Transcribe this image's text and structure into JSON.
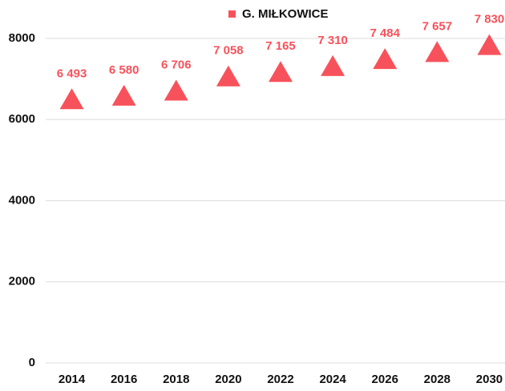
{
  "chart_data": {
    "type": "scatter",
    "x": [
      2014,
      2016,
      2018,
      2020,
      2022,
      2024,
      2026,
      2028,
      2030
    ],
    "series": [
      {
        "name": "G. MIŁKOWICE",
        "color": "#f7525b",
        "marker": "triangle",
        "values": [
          6493,
          6580,
          6706,
          7058,
          7165,
          7310,
          7484,
          7657,
          7830
        ],
        "value_labels": [
          "6 493",
          "6 580",
          "6 706",
          "7 058",
          "7 165",
          "7 310",
          "7 484",
          "7 657",
          "7 830"
        ]
      }
    ],
    "xlim": [
      2013,
      2030.6
    ],
    "xticks": [
      2014,
      2016,
      2018,
      2020,
      2022,
      2024,
      2026,
      2028,
      2030
    ],
    "ylim": [
      0,
      8000
    ],
    "yticks": [
      0,
      2000,
      4000,
      6000,
      8000
    ],
    "grid": true,
    "legend": "top"
  }
}
